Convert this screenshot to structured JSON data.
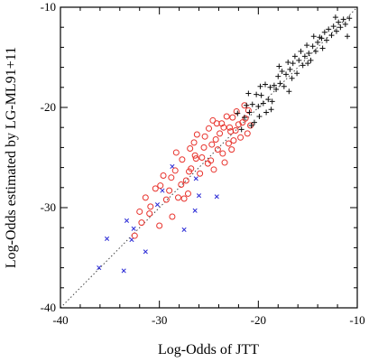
{
  "chart_data": {
    "type": "scatter",
    "title": "",
    "xlabel": "Log-Odds of JTT",
    "ylabel": "Log-Odds estimated by LG-ML91+11",
    "xlim": [
      -40,
      -10
    ],
    "ylim": [
      -40,
      -10
    ],
    "x_ticks": [
      -40,
      -30,
      -20,
      -10
    ],
    "y_ticks": [
      -40,
      -30,
      -20,
      -10
    ],
    "x_tick_labels": [
      "-40",
      "-30",
      "-20",
      "-10"
    ],
    "y_tick_labels": [
      "-40",
      "-30",
      "-20",
      "-10"
    ],
    "grid": false,
    "legend": "none",
    "reference_line": {
      "style": "dotted",
      "from": [
        -40,
        -40
      ],
      "to": [
        -10,
        -10
      ]
    },
    "series": [
      {
        "marker": "x",
        "color": "#2b2bd6",
        "points": [
          [
            -36.1,
            -36.0
          ],
          [
            -35.3,
            -33.1
          ],
          [
            -33.6,
            -36.3
          ],
          [
            -33.3,
            -31.3
          ],
          [
            -32.8,
            -33.2
          ],
          [
            -32.6,
            -32.1
          ],
          [
            -31.4,
            -34.4
          ],
          [
            -30.2,
            -29.7
          ],
          [
            -29.7,
            -28.3
          ],
          [
            -28.7,
            -25.9
          ],
          [
            -27.5,
            -32.2
          ],
          [
            -26.4,
            -30.3
          ],
          [
            -26.3,
            -27.1
          ],
          [
            -26.0,
            -28.8
          ],
          [
            -24.2,
            -28.9
          ]
        ]
      },
      {
        "marker": "o",
        "color": "#e8322c",
        "points": [
          [
            -32.5,
            -32.8
          ],
          [
            -32.0,
            -30.4
          ],
          [
            -31.8,
            -31.5
          ],
          [
            -31.4,
            -29.0
          ],
          [
            -31.0,
            -30.6
          ],
          [
            -30.9,
            -29.9
          ],
          [
            -30.4,
            -28.1
          ],
          [
            -30.0,
            -31.8
          ],
          [
            -29.9,
            -27.8
          ],
          [
            -29.6,
            -26.8
          ],
          [
            -29.3,
            -29.2
          ],
          [
            -29.0,
            -28.3
          ],
          [
            -28.8,
            -27.0
          ],
          [
            -28.7,
            -30.9
          ],
          [
            -28.4,
            -26.3
          ],
          [
            -28.3,
            -24.5
          ],
          [
            -28.1,
            -29.0
          ],
          [
            -27.8,
            -27.7
          ],
          [
            -27.7,
            -25.2
          ],
          [
            -27.5,
            -29.1
          ],
          [
            -27.3,
            -27.3
          ],
          [
            -27.1,
            -28.6
          ],
          [
            -26.9,
            -24.1
          ],
          [
            -26.8,
            -26.1
          ],
          [
            -26.5,
            -23.5
          ],
          [
            -26.3,
            -25.1
          ],
          [
            -26.2,
            -22.7
          ],
          [
            -25.9,
            -26.6
          ],
          [
            -25.7,
            -25.0
          ],
          [
            -25.5,
            -24.0
          ],
          [
            -25.4,
            -22.9
          ],
          [
            -25.1,
            -25.6
          ],
          [
            -25.0,
            -22.1
          ],
          [
            -24.8,
            -25.3
          ],
          [
            -24.7,
            -23.7
          ],
          [
            -24.5,
            -26.2
          ],
          [
            -24.3,
            -23.2
          ],
          [
            -24.2,
            -21.6
          ],
          [
            -24.1,
            -24.2
          ],
          [
            -23.9,
            -22.6
          ],
          [
            -23.7,
            -21.6
          ],
          [
            -23.6,
            -24.6
          ],
          [
            -23.5,
            -22.0
          ],
          [
            -23.4,
            -25.5
          ],
          [
            -23.2,
            -20.9
          ],
          [
            -23.0,
            -23.6
          ],
          [
            -22.8,
            -22.4
          ],
          [
            -22.7,
            -24.2
          ],
          [
            -22.6,
            -21.0
          ],
          [
            -22.5,
            -23.3
          ],
          [
            -22.3,
            -22.3
          ],
          [
            -22.2,
            -20.4
          ],
          [
            -22.0,
            -21.7
          ],
          [
            -21.8,
            -23.0
          ],
          [
            -21.6,
            -21.5
          ],
          [
            -21.4,
            -19.8
          ],
          [
            -21.3,
            -21.1
          ],
          [
            -21.1,
            -22.6
          ],
          [
            -21.0,
            -20.3
          ],
          [
            -20.8,
            -21.8
          ],
          [
            -26.4,
            -24.8
          ],
          [
            -27.0,
            -26.4
          ],
          [
            -24.6,
            -21.3
          ],
          [
            -22.9,
            -22.0
          ]
        ]
      },
      {
        "marker": "+",
        "color": "#111111",
        "points": [
          [
            -22.1,
            -20.6
          ],
          [
            -21.7,
            -22.2
          ],
          [
            -21.4,
            -21.0
          ],
          [
            -21.2,
            -19.8
          ],
          [
            -21.0,
            -18.6
          ],
          [
            -20.9,
            -20.5
          ],
          [
            -20.6,
            -19.7
          ],
          [
            -20.4,
            -21.5
          ],
          [
            -20.2,
            -18.7
          ],
          [
            -20.0,
            -19.9
          ],
          [
            -19.9,
            -20.9
          ],
          [
            -19.7,
            -18.8
          ],
          [
            -19.5,
            -19.6
          ],
          [
            -19.3,
            -17.7
          ],
          [
            -19.2,
            -20.5
          ],
          [
            -19.0,
            -19.2
          ],
          [
            -18.8,
            -18.0
          ],
          [
            -18.6,
            -19.4
          ],
          [
            -18.4,
            -17.8
          ],
          [
            -18.2,
            -18.2
          ],
          [
            -18.0,
            -16.9
          ],
          [
            -17.8,
            -17.6
          ],
          [
            -17.6,
            -16.4
          ],
          [
            -17.4,
            -17.9
          ],
          [
            -17.2,
            -16.7
          ],
          [
            -17.0,
            -15.5
          ],
          [
            -16.8,
            -16.2
          ],
          [
            -16.6,
            -17.1
          ],
          [
            -16.5,
            -15.6
          ],
          [
            -16.3,
            -14.9
          ],
          [
            -16.1,
            -16.6
          ],
          [
            -15.9,
            -15.3
          ],
          [
            -15.7,
            -14.4
          ],
          [
            -15.5,
            -15.8
          ],
          [
            -15.3,
            -14.9
          ],
          [
            -15.1,
            -13.8
          ],
          [
            -14.9,
            -14.6
          ],
          [
            -14.7,
            -15.3
          ],
          [
            -14.5,
            -13.9
          ],
          [
            -14.4,
            -12.9
          ],
          [
            -14.2,
            -14.4
          ],
          [
            -14.0,
            -13.5
          ],
          [
            -13.8,
            -13.0
          ],
          [
            -13.5,
            -14.1
          ],
          [
            -13.3,
            -12.5
          ],
          [
            -13.1,
            -13.3
          ],
          [
            -12.9,
            -12.2
          ],
          [
            -12.6,
            -12.8
          ],
          [
            -12.4,
            -11.9
          ],
          [
            -12.1,
            -12.4
          ],
          [
            -11.9,
            -11.5
          ],
          [
            -11.7,
            -12.0
          ],
          [
            -11.4,
            -11.2
          ],
          [
            -11.2,
            -11.7
          ],
          [
            -11.0,
            -12.9
          ],
          [
            -10.8,
            -11.1
          ],
          [
            -16.9,
            -18.4
          ],
          [
            -18.7,
            -20.2
          ],
          [
            -20.7,
            -21.8
          ],
          [
            -15.0,
            -15.6
          ],
          [
            -13.6,
            -13.1
          ],
          [
            -17.9,
            -15.9
          ],
          [
            -19.8,
            -17.9
          ],
          [
            -12.2,
            -11.0
          ]
        ]
      }
    ]
  }
}
